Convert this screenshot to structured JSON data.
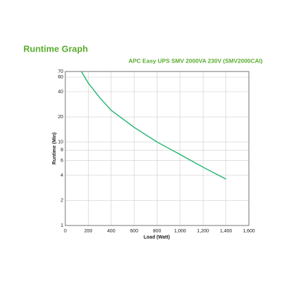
{
  "chart_data": {
    "type": "line",
    "title": "Runtime Graph",
    "subtitle": "APC Easy UPS SMV 2000VA 230V (SMV2000CAI)",
    "xlabel": "Load (Watt)",
    "ylabel": "Runtime (Min)",
    "x": [
      140,
      200,
      300,
      400,
      600,
      800,
      1000,
      1200,
      1400
    ],
    "series": [
      {
        "name": "SMV2000CAI",
        "color": "#2bb673",
        "values": [
          70,
          51,
          34,
          24,
          15,
          10,
          7.1,
          5,
          3.6
        ]
      }
    ],
    "xlim": [
      0,
      1600
    ],
    "xticks": [
      0,
      200,
      400,
      600,
      800,
      {
        "value": 1000,
        "label": "1,000"
      },
      {
        "value": 1200,
        "label": "1,200"
      },
      {
        "value": 1400,
        "label": "1,400"
      },
      {
        "value": 1600,
        "label": "1,600"
      }
    ],
    "ylim": [
      1,
      70
    ],
    "yticks": [
      1,
      2,
      4,
      6,
      8,
      10,
      20,
      40,
      60,
      70
    ],
    "yscale": "log",
    "grid": true
  }
}
